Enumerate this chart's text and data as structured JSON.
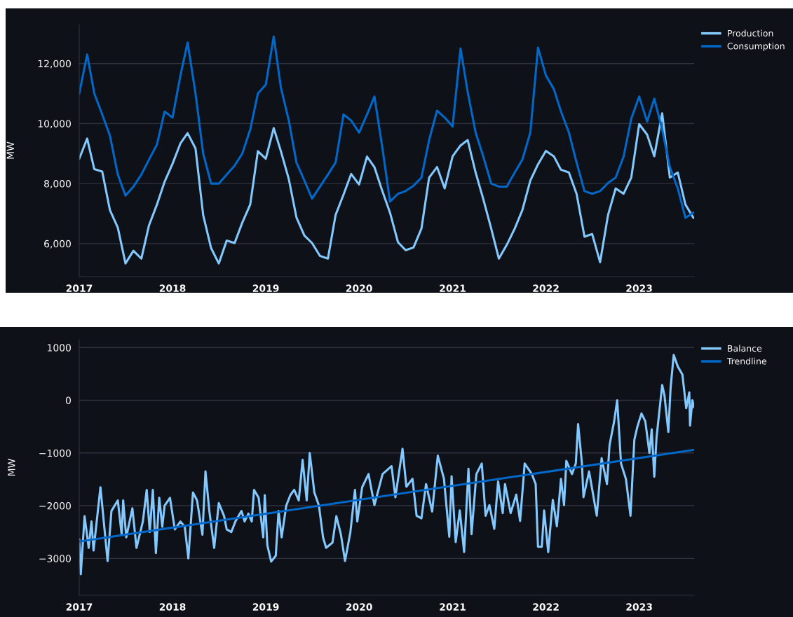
{
  "chart_data": [
    {
      "type": "line",
      "ylabel": "MW",
      "grid": "y",
      "legend": "top right",
      "xlim": [
        "2017-01-01",
        "2023-08-04"
      ],
      "ylim": [
        4900,
        13300
      ],
      "xticks": [
        {
          "value": "2017-01-01",
          "label": "2017"
        },
        {
          "value": "2018-01-01",
          "label": "2018"
        },
        {
          "value": "2019-01-01",
          "label": "2019"
        },
        {
          "value": "2020-01-01",
          "label": "2020"
        },
        {
          "value": "2021-01-01",
          "label": "2021"
        },
        {
          "value": "2022-01-01",
          "label": "2022"
        },
        {
          "value": "2023-01-01",
          "label": "2023"
        }
      ],
      "yticks": [
        {
          "value": 6000,
          "label": "6,000"
        },
        {
          "value": 8000,
          "label": "8,000"
        },
        {
          "value": 10000,
          "label": "10,000"
        },
        {
          "value": 12000,
          "label": "12,000"
        }
      ],
      "x": [
        "2017-01",
        "2017-02",
        "2017-03",
        "2017-04",
        "2017-05",
        "2017-06",
        "2017-07",
        "2017-08",
        "2017-09",
        "2017-10",
        "2017-11",
        "2017-12",
        "2018-01",
        "2018-02",
        "2018-03",
        "2018-04",
        "2018-05",
        "2018-06",
        "2018-07",
        "2018-08",
        "2018-09",
        "2018-10",
        "2018-11",
        "2018-12",
        "2019-01",
        "2019-02",
        "2019-03",
        "2019-04",
        "2019-05",
        "2019-06",
        "2019-07",
        "2019-08",
        "2019-09",
        "2019-10",
        "2019-11",
        "2019-12",
        "2020-01",
        "2020-02",
        "2020-03",
        "2020-04",
        "2020-05",
        "2020-06",
        "2020-07",
        "2020-08",
        "2020-09",
        "2020-10",
        "2020-11",
        "2020-12",
        "2021-01",
        "2021-02",
        "2021-03",
        "2021-04",
        "2021-05",
        "2021-06",
        "2021-07",
        "2021-08",
        "2021-09",
        "2021-10",
        "2021-11",
        "2021-12",
        "2022-01",
        "2022-02",
        "2022-03",
        "2022-04",
        "2022-05",
        "2022-06",
        "2022-07",
        "2022-08",
        "2022-09",
        "2022-10",
        "2022-11",
        "2022-12",
        "2023-01",
        "2023-02",
        "2023-03",
        "2023-04",
        "2023-05",
        "2023-06",
        "2023-07",
        "2023-08"
      ],
      "series": [
        {
          "name": "Production",
          "color": "#83c9ff",
          "values": [
            8830,
            9500,
            8480,
            8400,
            7120,
            6530,
            5340,
            5760,
            5500,
            6610,
            7300,
            8060,
            8660,
            9340,
            9680,
            9170,
            6950,
            5850,
            5340,
            6100,
            6020,
            6700,
            7300,
            9080,
            8830,
            9850,
            9080,
            8150,
            6870,
            6270,
            6020,
            5590,
            5500,
            6950,
            7630,
            8320,
            7970,
            8900,
            8550,
            7750,
            7030,
            6050,
            5780,
            5870,
            6500,
            8200,
            8550,
            7840,
            8910,
            9270,
            9450,
            8370,
            7480,
            6500,
            5500,
            5960,
            6500,
            7120,
            8100,
            8640,
            9090,
            8910,
            8460,
            8370,
            7660,
            6230,
            6320,
            5380,
            6950,
            7840,
            7660,
            8200,
            9980,
            9630,
            8910,
            10340,
            8200,
            8370,
            7300,
            6860
          ]
        },
        {
          "name": "Consumption",
          "color": "#0068c9",
          "values": [
            11000,
            12300,
            11000,
            10300,
            9600,
            8300,
            7600,
            7900,
            8300,
            8800,
            9300,
            10400,
            10200,
            11600,
            12700,
            11000,
            9000,
            8000,
            8000,
            8300,
            8600,
            9000,
            9800,
            11000,
            11300,
            12900,
            11200,
            10100,
            8700,
            8100,
            7500,
            7900,
            8300,
            8700,
            10300,
            10100,
            9700,
            10300,
            10900,
            9200,
            7400,
            7660,
            7750,
            7930,
            8200,
            9450,
            10430,
            10200,
            9900,
            12500,
            11050,
            9700,
            8900,
            8000,
            7900,
            7900,
            8370,
            8800,
            9700,
            12530,
            11600,
            11150,
            10400,
            9700,
            8700,
            7750,
            7660,
            7750,
            8020,
            8200,
            8900,
            10160,
            10900,
            10070,
            10830,
            9800,
            8550,
            7840,
            6860,
            7030
          ]
        }
      ]
    },
    {
      "type": "line",
      "ylabel": "MW",
      "grid": "y",
      "legend": "top right",
      "xlim": [
        "2017-01-01",
        "2023-08-04"
      ],
      "ylim": [
        -3700,
        1150
      ],
      "xticks": [
        {
          "value": "2017-01-01",
          "label": "2017"
        },
        {
          "value": "2018-01-01",
          "label": "2018"
        },
        {
          "value": "2019-01-01",
          "label": "2019"
        },
        {
          "value": "2020-01-01",
          "label": "2020"
        },
        {
          "value": "2021-01-01",
          "label": "2021"
        },
        {
          "value": "2022-01-01",
          "label": "2022"
        },
        {
          "value": "2023-01-01",
          "label": "2023"
        }
      ],
      "yticks": [
        {
          "value": -3000,
          "label": "−3000"
        },
        {
          "value": -2000,
          "label": "−2000"
        },
        {
          "value": -1000,
          "label": "−1000"
        },
        0,
        1000
      ],
      "series": [
        {
          "name": "Balance",
          "color": "#83c9ff",
          "x": [
            "2017-01-01",
            "2017-01-07",
            "2017-01-22",
            "2017-02-07",
            "2017-02-18",
            "2017-02-26",
            "2017-03-25",
            "2017-04-22",
            "2017-05-07",
            "2017-06-01",
            "2017-06-16",
            "2017-06-22",
            "2017-07-04",
            "2017-07-28",
            "2017-08-13",
            "2017-09-07",
            "2017-09-22",
            "2017-10-04",
            "2017-10-16",
            "2017-10-28",
            "2017-11-10",
            "2017-11-22",
            "2017-12-01",
            "2017-12-22",
            "2018-01-10",
            "2018-02-01",
            "2018-02-18",
            "2018-03-04",
            "2018-03-22",
            "2018-04-07",
            "2018-04-28",
            "2018-05-10",
            "2018-05-25",
            "2018-06-13",
            "2018-07-01",
            "2018-07-22",
            "2018-08-01",
            "2018-08-19",
            "2018-09-04",
            "2018-09-28",
            "2018-10-10",
            "2018-10-25",
            "2018-11-07",
            "2018-11-16",
            "2018-12-04",
            "2018-12-22",
            "2018-12-28",
            "2019-01-07",
            "2019-01-22",
            "2019-02-09",
            "2019-02-20",
            "2019-03-04",
            "2019-03-22",
            "2019-04-07",
            "2019-04-22",
            "2019-05-10",
            "2019-05-25",
            "2019-06-10",
            "2019-06-22",
            "2019-07-10",
            "2019-07-28",
            "2019-08-13",
            "2019-08-25",
            "2019-09-19",
            "2019-10-04",
            "2019-10-22",
            "2019-11-07",
            "2019-11-28",
            "2019-12-16",
            "2019-12-25",
            "2020-01-13",
            "2020-02-07",
            "2020-03-01",
            "2020-04-02",
            "2020-05-07",
            "2020-05-22",
            "2020-06-19",
            "2020-07-04",
            "2020-07-28",
            "2020-08-13",
            "2020-09-01",
            "2020-09-19",
            "2020-10-13",
            "2020-11-04",
            "2020-11-28",
            "2020-12-19",
            "2020-12-28",
            "2021-01-13",
            "2021-01-29",
            "2021-02-15",
            "2021-03-04",
            "2021-03-16",
            "2021-04-04",
            "2021-04-25",
            "2021-05-10",
            "2021-05-25",
            "2021-06-13",
            "2021-06-28",
            "2021-07-16",
            "2021-07-25",
            "2021-08-16",
            "2021-09-07",
            "2021-09-22",
            "2021-10-10",
            "2021-11-07",
            "2021-11-22",
            "2021-12-01",
            "2021-12-16",
            "2021-12-25",
            "2022-01-10",
            "2022-01-28",
            "2022-02-13",
            "2022-03-01",
            "2022-03-13",
            "2022-03-22",
            "2022-04-13",
            "2022-04-28",
            "2022-05-07",
            "2022-05-22",
            "2022-05-28",
            "2022-06-19",
            "2022-07-19",
            "2022-08-07",
            "2022-08-28",
            "2022-09-07",
            "2022-09-25",
            "2022-10-07",
            "2022-10-22",
            "2022-11-10",
            "2022-11-28",
            "2022-12-13",
            "2022-12-25",
            "2023-01-10",
            "2023-01-25",
            "2023-02-10",
            "2023-02-19",
            "2023-03-01",
            "2023-03-10",
            "2023-04-01",
            "2023-04-10",
            "2023-04-25",
            "2023-05-04",
            "2023-05-16",
            "2023-06-01",
            "2023-06-19",
            "2023-07-04",
            "2023-07-16",
            "2023-07-19",
            "2023-07-28",
            "2023-08-04"
          ],
          "values": [
            -2640,
            -3300,
            -2200,
            -2800,
            -2300,
            -2850,
            -1650,
            -3050,
            -2100,
            -1900,
            -2550,
            -1900,
            -2600,
            -2050,
            -2800,
            -2300,
            -1700,
            -2500,
            -1700,
            -2900,
            -1850,
            -2400,
            -2000,
            -1850,
            -2450,
            -2300,
            -2400,
            -3000,
            -1750,
            -1900,
            -2550,
            -1350,
            -2100,
            -2800,
            -1950,
            -2200,
            -2450,
            -2500,
            -2300,
            -2100,
            -2300,
            -2150,
            -2300,
            -1700,
            -1850,
            -2600,
            -1800,
            -2750,
            -3060,
            -2950,
            -2100,
            -2600,
            -2000,
            -1800,
            -1700,
            -1900,
            -1130,
            -1900,
            -1000,
            -1750,
            -2000,
            -2600,
            -2800,
            -2700,
            -2200,
            -2550,
            -3050,
            -2500,
            -1700,
            -2300,
            -1650,
            -1400,
            -1990,
            -1400,
            -1250,
            -1840,
            -920,
            -1640,
            -1490,
            -2190,
            -2240,
            -1590,
            -2110,
            -1050,
            -1490,
            -2590,
            -1440,
            -2690,
            -2090,
            -2880,
            -1300,
            -2540,
            -1400,
            -1200,
            -2190,
            -1990,
            -2440,
            -1540,
            -2140,
            -1590,
            -2140,
            -1790,
            -2290,
            -1200,
            -1400,
            -1590,
            -2780,
            -2780,
            -2090,
            -2880,
            -1890,
            -2390,
            -1490,
            -1990,
            -1150,
            -1400,
            -1200,
            -450,
            -1200,
            -1840,
            -1350,
            -2190,
            -1100,
            -1590,
            -850,
            -400,
            0,
            -1200,
            -1490,
            -2190,
            -750,
            -500,
            -250,
            -400,
            -1000,
            -550,
            -1450,
            -700,
            290,
            90,
            -600,
            240,
            860,
            640,
            490,
            -150,
            150,
            -480,
            0,
            -130
          ]
        },
        {
          "name": "Trendline",
          "color": "#0068c9",
          "x": [
            "2017-01-01",
            "2023-08-04"
          ],
          "values": [
            -2680,
            -940
          ]
        }
      ]
    }
  ]
}
